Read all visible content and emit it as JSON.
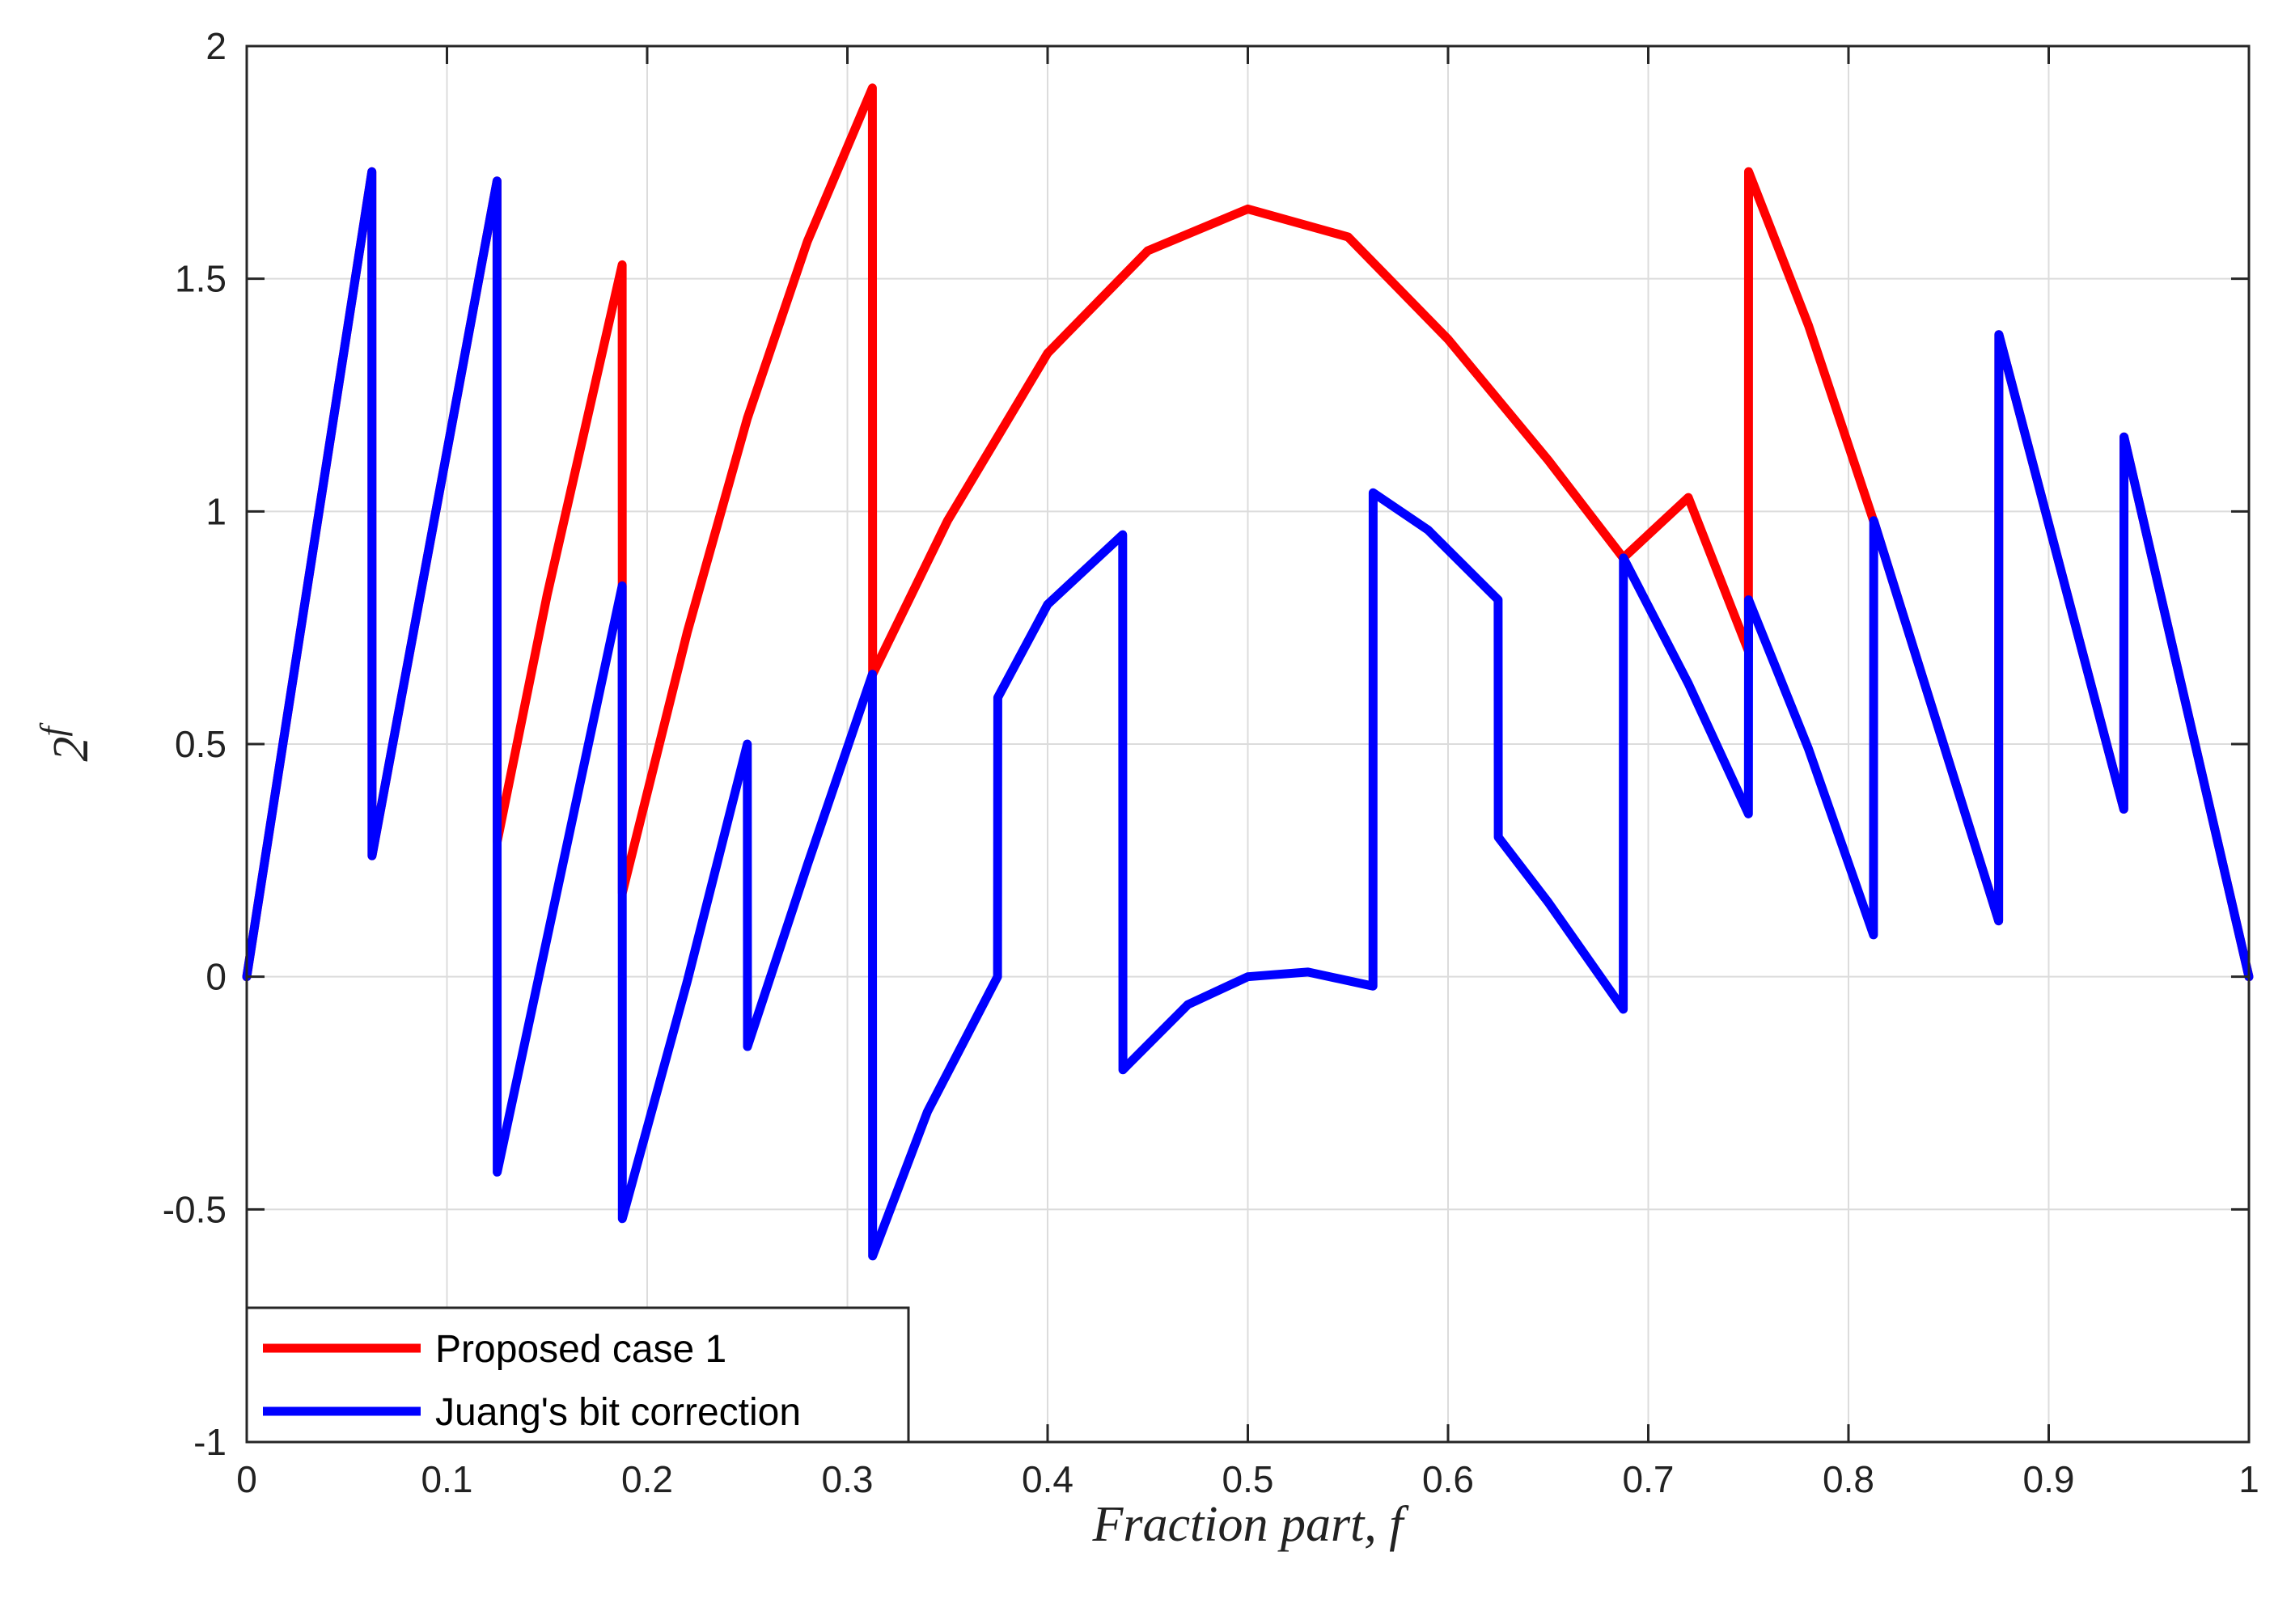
{
  "chart_data": {
    "type": "line",
    "title": "",
    "xlabel": "Fraction part, f",
    "ylabel_base": "2",
    "ylabel_exp": "f",
    "xlim": [
      0,
      1
    ],
    "ylim": [
      -1,
      2
    ],
    "xticks": [
      0,
      0.1,
      0.2,
      0.3,
      0.4,
      0.5,
      0.6,
      0.7,
      0.8,
      0.9,
      1
    ],
    "xtick_labels": [
      "0",
      "0.1",
      "0.2",
      "0.3",
      "0.4",
      "0.5",
      "0.6",
      "0.7",
      "0.8",
      "0.9",
      "1"
    ],
    "yticks": [
      -1,
      -0.5,
      0,
      0.5,
      1,
      1.5,
      2
    ],
    "ytick_labels": [
      "-1",
      "-0.5",
      "0",
      "0.5",
      "1",
      "1.5",
      "2"
    ],
    "grid": true,
    "legend_position": "bottom-left",
    "series": [
      {
        "name": "Proposed case 1",
        "color": "#ff0000",
        "x": [
          0,
          0.0625,
          0.0626,
          0.125,
          0.1251,
          0.15,
          0.1875,
          0.1876,
          0.22,
          0.25,
          0.28,
          0.3125,
          0.3126,
          0.35,
          0.4,
          0.45,
          0.5,
          0.55,
          0.6,
          0.65,
          0.6875,
          0.72,
          0.75,
          0.7501,
          0.78,
          0.8125,
          0.8126,
          0.875,
          0.8751,
          0.9375,
          0.9376,
          1
        ],
        "y": [
          0,
          1.73,
          0.26,
          1.71,
          0.29,
          0.82,
          1.53,
          0.18,
          0.74,
          1.2,
          1.58,
          1.91,
          0.65,
          0.98,
          1.34,
          1.56,
          1.65,
          1.59,
          1.37,
          1.11,
          0.9,
          1.03,
          0.7,
          1.73,
          1.4,
          0.98,
          0.98,
          0.12,
          1.38,
          0.36,
          1.16,
          0
        ]
      },
      {
        "name": "Juang's bit correction",
        "color": "#0000ff",
        "x": [
          0,
          0.0625,
          0.0626,
          0.125,
          0.1251,
          0.1875,
          0.1876,
          0.22,
          0.25,
          0.2501,
          0.28,
          0.3125,
          0.3126,
          0.34,
          0.375,
          0.3751,
          0.4,
          0.4375,
          0.4376,
          0.47,
          0.5,
          0.53,
          0.5625,
          0.5626,
          0.59,
          0.625,
          0.6251,
          0.65,
          0.6875,
          0.6876,
          0.72,
          0.75,
          0.7501,
          0.78,
          0.8125,
          0.8126,
          0.875,
          0.8751,
          0.9375,
          0.9376,
          1
        ],
        "y": [
          0,
          1.73,
          0.26,
          1.71,
          -0.42,
          0.84,
          -0.52,
          -0.01,
          0.5,
          -0.15,
          0.24,
          0.65,
          -0.6,
          -0.29,
          0.0,
          0.6,
          0.8,
          0.95,
          -0.2,
          -0.06,
          0.0,
          0.01,
          -0.02,
          1.04,
          0.96,
          0.81,
          0.3,
          0.16,
          -0.07,
          0.9,
          0.63,
          0.35,
          0.81,
          0.49,
          0.09,
          0.98,
          0.12,
          1.38,
          0.36,
          1.16,
          0
        ]
      }
    ]
  }
}
